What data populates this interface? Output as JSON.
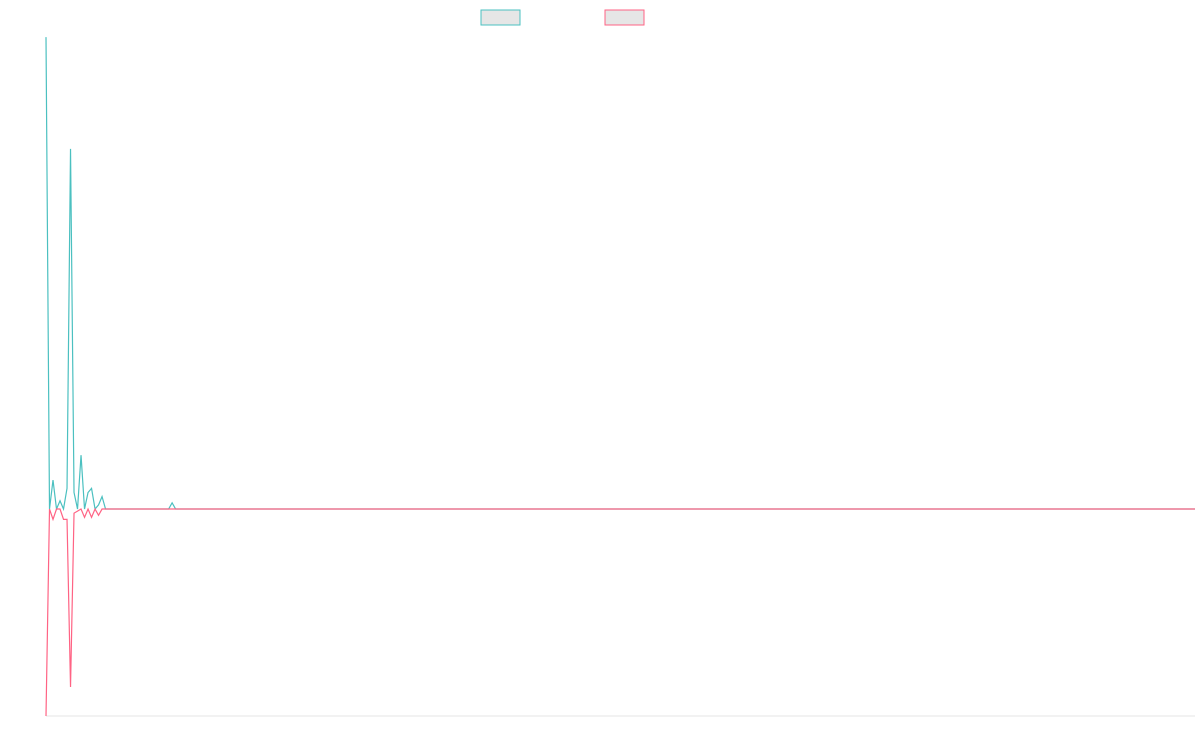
{
  "chart_data": {
    "type": "line",
    "x": [
      0,
      1,
      2,
      3,
      4,
      5,
      6,
      7,
      8,
      9,
      10,
      11,
      12,
      13,
      14,
      15,
      16,
      17,
      35,
      36,
      37,
      328
    ],
    "xlim": [
      0,
      328
    ],
    "ylim": [
      -1,
      2.3
    ],
    "series": [
      {
        "color": "#4bc0c0",
        "values": [
          2.28,
          0,
          0.14,
          0,
          0.04,
          0,
          0.1,
          1.74,
          0.08,
          0,
          0.26,
          0,
          0.08,
          0.1,
          0,
          0.02,
          0.06,
          0,
          0,
          0.03,
          0,
          0
        ]
      },
      {
        "color": "#ff6384",
        "values": [
          -1,
          0,
          -0.05,
          0,
          0,
          -0.05,
          -0.05,
          -0.86,
          -0.02,
          -0.01,
          0,
          -0.04,
          0,
          -0.04,
          0,
          -0.03,
          0,
          0,
          0,
          0,
          0,
          0
        ]
      }
    ]
  }
}
